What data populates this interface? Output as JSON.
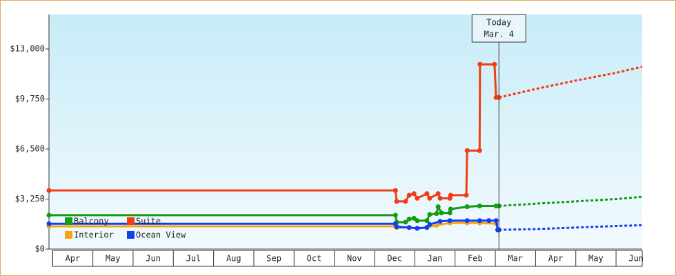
{
  "chart_data": {
    "type": "line",
    "xlim": [
      -0.09,
      14.65
    ],
    "ylim": [
      0,
      15240
    ],
    "yticks": [
      {
        "value": 0,
        "label": "$0"
      },
      {
        "value": 3250,
        "label": "$3,250"
      },
      {
        "value": 6500,
        "label": "$6,500"
      },
      {
        "value": 9750,
        "label": "$9,750"
      },
      {
        "value": 13000,
        "label": "$13,000"
      }
    ],
    "xticks": [
      {
        "value": 0,
        "label": "Apr"
      },
      {
        "value": 1,
        "label": "May"
      },
      {
        "value": 2,
        "label": "Jun"
      },
      {
        "value": 3,
        "label": "Jul"
      },
      {
        "value": 4,
        "label": "Aug"
      },
      {
        "value": 5,
        "label": "Sep"
      },
      {
        "value": 6,
        "label": "Oct"
      },
      {
        "value": 7,
        "label": "Nov"
      },
      {
        "value": 8,
        "label": "Dec"
      },
      {
        "value": 9,
        "label": "Jan"
      },
      {
        "value": 10,
        "label": "Feb"
      },
      {
        "value": 11,
        "label": "Mar"
      },
      {
        "value": 12,
        "label": "Apr"
      },
      {
        "value": 13,
        "label": "May"
      },
      {
        "value": 14,
        "label": "Jun"
      }
    ],
    "annotation": {
      "x": 11.09,
      "lines": [
        "Today",
        "Mar. 4"
      ]
    },
    "series": [
      {
        "name": "Balcony",
        "color": "#139b13",
        "x": [
          -0.09,
          8.52,
          8.55,
          8.77,
          8.86,
          8.98,
          9.06,
          9.3,
          9.37,
          9.54,
          9.58,
          9.66,
          9.87,
          9.89,
          10.3,
          10.61,
          11.02,
          11.09
        ],
        "values": [
          2200,
          2200,
          1750,
          1750,
          1950,
          2000,
          1850,
          1850,
          2250,
          2300,
          2750,
          2350,
          2350,
          2600,
          2750,
          2800,
          2800,
          2800
        ],
        "forecast": {
          "x": [
            11.09,
            12.0,
            13.0,
            14.0,
            14.65
          ],
          "values": [
            2800,
            2950,
            3100,
            3250,
            3400
          ]
        }
      },
      {
        "name": "Suite",
        "color": "#f03c10",
        "x": [
          -0.09,
          8.52,
          8.55,
          8.77,
          8.86,
          8.98,
          9.06,
          9.3,
          9.37,
          9.58,
          9.63,
          9.87,
          9.89,
          10.28,
          10.3,
          10.61,
          10.62,
          10.98,
          11.02,
          11.09
        ],
        "values": [
          3810,
          3810,
          3100,
          3100,
          3500,
          3600,
          3300,
          3600,
          3300,
          3600,
          3300,
          3300,
          3500,
          3500,
          6400,
          6400,
          12000,
          12000,
          9850,
          9850
        ],
        "forecast": {
          "x": [
            11.09,
            12.0,
            13.0,
            14.0,
            14.65
          ],
          "values": [
            9850,
            10400,
            10950,
            11450,
            11850
          ]
        }
      },
      {
        "name": "Interior",
        "color": "#f5a510",
        "x": [
          -0.09,
          8.52,
          8.55,
          8.86,
          9.06,
          9.3,
          9.54,
          9.87,
          10.3,
          10.61,
          11.02
        ],
        "values": [
          1480,
          1480,
          1400,
          1400,
          1350,
          1400,
          1550,
          1700,
          1700,
          1700,
          1650
        ],
        "forecast": null
      },
      {
        "name": "Ocean View",
        "color": "#1040f0",
        "x": [
          -0.09,
          8.52,
          8.55,
          8.86,
          9.06,
          9.3,
          9.37,
          9.63,
          9.87,
          10.3,
          10.61,
          10.84,
          11.02,
          11.06,
          11.09
        ],
        "values": [
          1650,
          1650,
          1450,
          1400,
          1350,
          1400,
          1600,
          1800,
          1850,
          1850,
          1850,
          1850,
          1850,
          1250,
          1250
        ],
        "forecast": {
          "x": [
            11.09,
            12.0,
            13.0,
            14.0,
            14.65
          ],
          "values": [
            1250,
            1300,
            1400,
            1500,
            1550
          ]
        }
      }
    ]
  }
}
